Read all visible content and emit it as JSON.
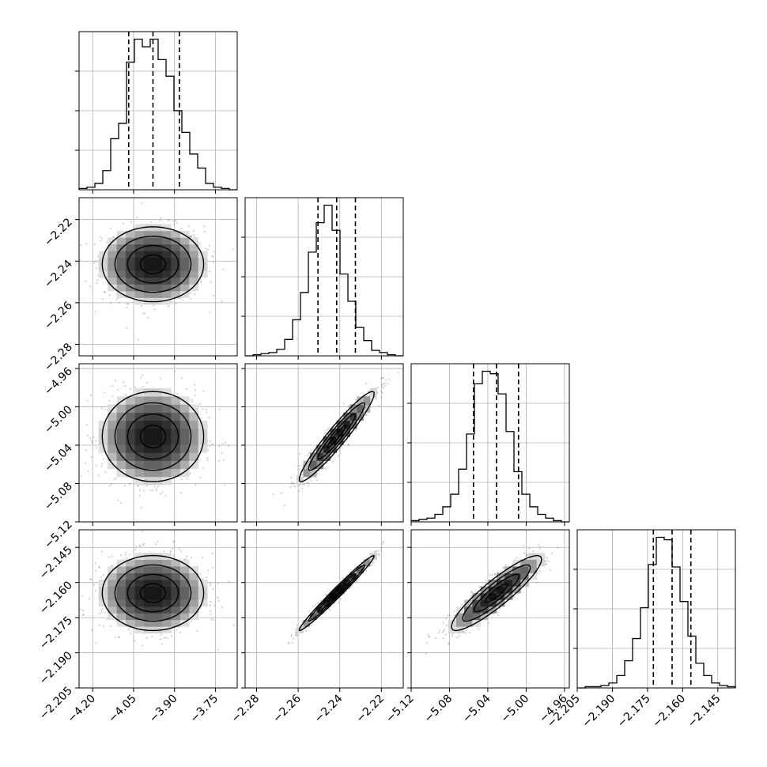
{
  "chart_data": {
    "type": "corner",
    "n_params": 4,
    "colors": {
      "line": "#000000",
      "grid": "#b0b0b0",
      "scatter": "#7a7a7a",
      "density_dark": "#000000",
      "density_light": "#f4f4f4"
    },
    "params": [
      {
        "index": 0,
        "range": [
          -4.25,
          -3.67
        ],
        "hist_ticks": [
          -4.2,
          -4.05,
          -3.9,
          -3.75
        ],
        "tick_labels": [
          "−4.20",
          "−4.05",
          "−3.90",
          "−3.75"
        ],
        "show_xlabels": true,
        "show_ylabels": false,
        "quantiles": [
          -4.068,
          -3.979,
          -3.882
        ],
        "hist_counts": [
          1,
          2,
          5,
          15,
          40,
          52,
          100,
          118,
          112,
          118,
          102,
          89,
          62,
          45,
          28,
          17,
          5,
          2,
          1,
          0
        ]
      },
      {
        "index": 1,
        "range": [
          -2.2855,
          -2.2095
        ],
        "ticks": [
          -2.28,
          -2.26,
          -2.24,
          -2.22
        ],
        "tick_labels": [
          "−2.28",
          "−2.26",
          "−2.24",
          "−2.22"
        ],
        "show_xlabels": true,
        "show_ylabels": true,
        "quantiles": [
          -2.2505,
          -2.2415,
          -2.2325
        ],
        "hist_counts": [
          0,
          1,
          2,
          3,
          6,
          15,
          33,
          58,
          95,
          122,
          138,
          115,
          75,
          50,
          26,
          14,
          5,
          3,
          1,
          0
        ]
      },
      {
        "index": 2,
        "range": [
          -5.12,
          -4.955
        ],
        "ticks": [
          -5.12,
          -5.08,
          -5.04,
          -5.0,
          -4.96
        ],
        "tick_labels": [
          "−5.12",
          "−5.08",
          "−5.04",
          "−5.00",
          "−4.96"
        ],
        "show_xlabels": true,
        "show_ylabels": true,
        "quantiles": [
          -5.055,
          -5.031,
          -5.008
        ],
        "hist_counts": [
          1,
          2,
          3,
          6,
          12,
          22,
          42,
          70,
          110,
          120,
          118,
          102,
          72,
          40,
          22,
          12,
          6,
          3,
          1,
          0
        ]
      },
      {
        "index": 3,
        "range": [
          -2.205,
          -2.1375
        ],
        "ticks": [
          -2.205,
          -2.19,
          -2.175,
          -2.16,
          -2.145
        ],
        "tick_labels": [
          "−2.205",
          "−2.190",
          "−2.175",
          "−2.160",
          "−2.145"
        ],
        "show_xlabels": true,
        "show_ylabels": true,
        "quantiles": [
          -2.1725,
          -2.1645,
          -2.1565
        ],
        "hist_counts": [
          0,
          1,
          1,
          2,
          4,
          10,
          22,
          40,
          65,
          100,
          122,
          120,
          98,
          70,
          42,
          20,
          10,
          4,
          2,
          1
        ]
      }
    ],
    "pairs": [
      {
        "x": 0,
        "y": 1,
        "correlation": 0.0
      },
      {
        "x": 0,
        "y": 2,
        "correlation": 0.0
      },
      {
        "x": 1,
        "y": 2,
        "correlation": 0.95
      },
      {
        "x": 0,
        "y": 3,
        "correlation": 0.0
      },
      {
        "x": 1,
        "y": 3,
        "correlation": 0.985
      },
      {
        "x": 2,
        "y": 3,
        "correlation": 0.9
      }
    ],
    "contour_levels": [
      0.5,
      1.0,
      1.5,
      2.0
    ],
    "grid": true,
    "quantile_style": "dashed"
  }
}
